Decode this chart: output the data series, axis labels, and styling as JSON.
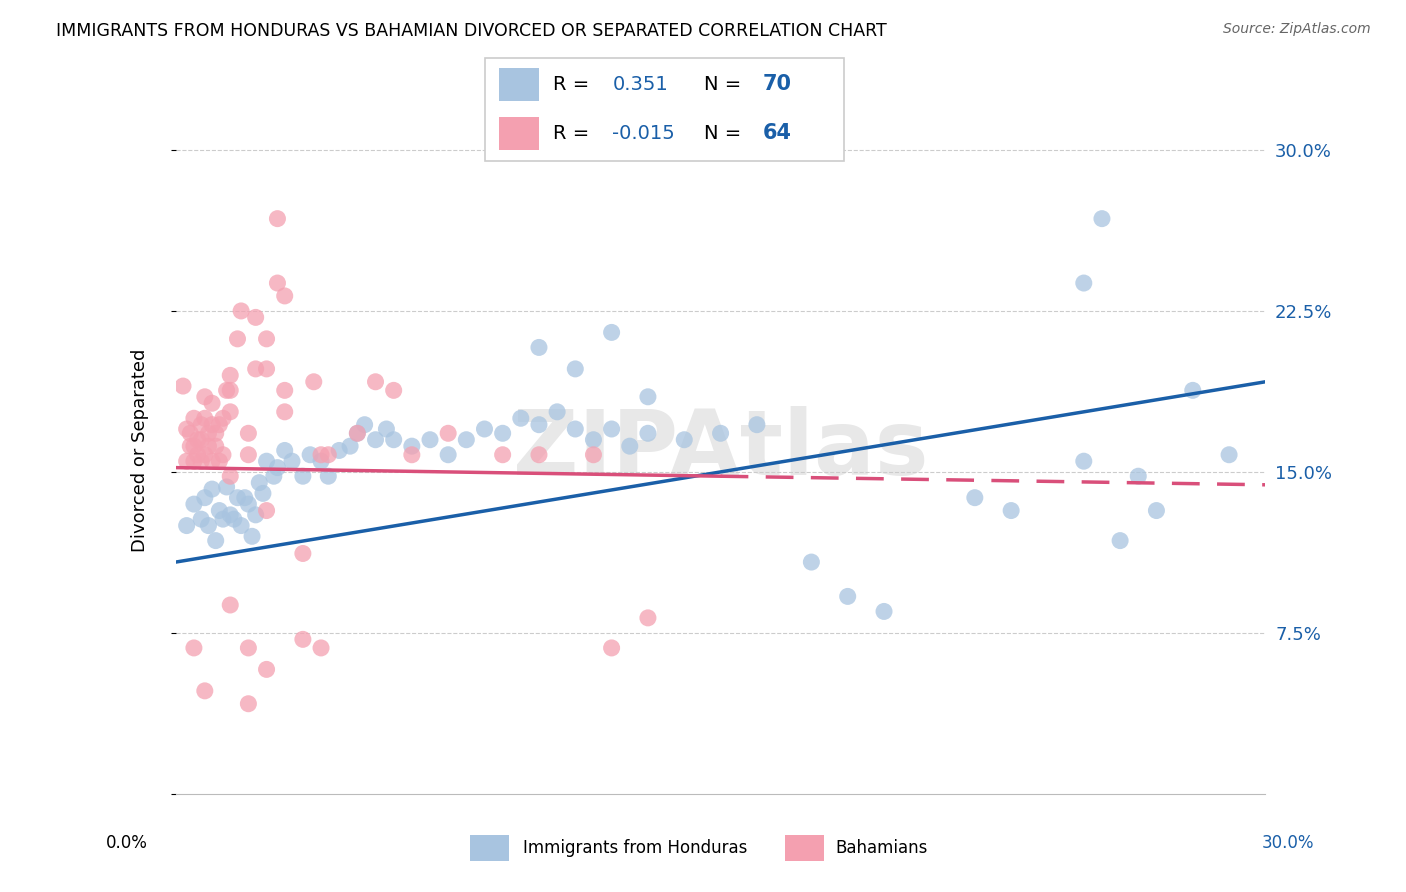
{
  "title": "IMMIGRANTS FROM HONDURAS VS BAHAMIAN DIVORCED OR SEPARATED CORRELATION CHART",
  "source": "Source: ZipAtlas.com",
  "ylabel": "Divorced or Separated",
  "ytick_vals": [
    0.0,
    0.075,
    0.15,
    0.225,
    0.3
  ],
  "ytick_labels": [
    "",
    "7.5%",
    "15.0%",
    "22.5%",
    "30.0%"
  ],
  "xlim": [
    0.0,
    0.3
  ],
  "ylim": [
    0.0,
    0.32
  ],
  "blue_scatter_color": "#a8c4e0",
  "pink_scatter_color": "#f4a0b0",
  "blue_line_color": "#1a5fa8",
  "pink_line_color": "#d94f7a",
  "watermark": "ZIPAtlas",
  "blue_points": [
    [
      0.003,
      0.125
    ],
    [
      0.005,
      0.135
    ],
    [
      0.007,
      0.128
    ],
    [
      0.008,
      0.138
    ],
    [
      0.009,
      0.125
    ],
    [
      0.01,
      0.142
    ],
    [
      0.011,
      0.118
    ],
    [
      0.012,
      0.132
    ],
    [
      0.013,
      0.128
    ],
    [
      0.014,
      0.143
    ],
    [
      0.015,
      0.13
    ],
    [
      0.016,
      0.128
    ],
    [
      0.017,
      0.138
    ],
    [
      0.018,
      0.125
    ],
    [
      0.019,
      0.138
    ],
    [
      0.02,
      0.135
    ],
    [
      0.021,
      0.12
    ],
    [
      0.022,
      0.13
    ],
    [
      0.023,
      0.145
    ],
    [
      0.024,
      0.14
    ],
    [
      0.025,
      0.155
    ],
    [
      0.027,
      0.148
    ],
    [
      0.028,
      0.152
    ],
    [
      0.03,
      0.16
    ],
    [
      0.032,
      0.155
    ],
    [
      0.035,
      0.148
    ],
    [
      0.037,
      0.158
    ],
    [
      0.04,
      0.155
    ],
    [
      0.042,
      0.148
    ],
    [
      0.045,
      0.16
    ],
    [
      0.048,
      0.162
    ],
    [
      0.05,
      0.168
    ],
    [
      0.052,
      0.172
    ],
    [
      0.055,
      0.165
    ],
    [
      0.058,
      0.17
    ],
    [
      0.06,
      0.165
    ],
    [
      0.065,
      0.162
    ],
    [
      0.07,
      0.165
    ],
    [
      0.075,
      0.158
    ],
    [
      0.08,
      0.165
    ],
    [
      0.085,
      0.17
    ],
    [
      0.09,
      0.168
    ],
    [
      0.095,
      0.175
    ],
    [
      0.1,
      0.172
    ],
    [
      0.105,
      0.178
    ],
    [
      0.11,
      0.17
    ],
    [
      0.115,
      0.165
    ],
    [
      0.12,
      0.17
    ],
    [
      0.125,
      0.162
    ],
    [
      0.13,
      0.168
    ],
    [
      0.1,
      0.208
    ],
    [
      0.11,
      0.198
    ],
    [
      0.12,
      0.215
    ],
    [
      0.13,
      0.185
    ],
    [
      0.14,
      0.165
    ],
    [
      0.15,
      0.168
    ],
    [
      0.16,
      0.172
    ],
    [
      0.175,
      0.108
    ],
    [
      0.185,
      0.092
    ],
    [
      0.195,
      0.085
    ],
    [
      0.22,
      0.138
    ],
    [
      0.23,
      0.132
    ],
    [
      0.25,
      0.238
    ],
    [
      0.255,
      0.268
    ],
    [
      0.26,
      0.118
    ],
    [
      0.27,
      0.132
    ],
    [
      0.28,
      0.188
    ],
    [
      0.29,
      0.158
    ],
    [
      0.25,
      0.155
    ],
    [
      0.265,
      0.148
    ]
  ],
  "pink_points": [
    [
      0.002,
      0.19
    ],
    [
      0.003,
      0.155
    ],
    [
      0.003,
      0.17
    ],
    [
      0.004,
      0.162
    ],
    [
      0.004,
      0.168
    ],
    [
      0.005,
      0.155
    ],
    [
      0.005,
      0.162
    ],
    [
      0.005,
      0.175
    ],
    [
      0.006,
      0.158
    ],
    [
      0.006,
      0.165
    ],
    [
      0.007,
      0.155
    ],
    [
      0.007,
      0.165
    ],
    [
      0.007,
      0.172
    ],
    [
      0.008,
      0.158
    ],
    [
      0.008,
      0.175
    ],
    [
      0.008,
      0.185
    ],
    [
      0.009,
      0.162
    ],
    [
      0.009,
      0.168
    ],
    [
      0.01,
      0.155
    ],
    [
      0.01,
      0.172
    ],
    [
      0.01,
      0.182
    ],
    [
      0.011,
      0.162
    ],
    [
      0.011,
      0.168
    ],
    [
      0.012,
      0.155
    ],
    [
      0.012,
      0.172
    ],
    [
      0.013,
      0.158
    ],
    [
      0.013,
      0.175
    ],
    [
      0.014,
      0.188
    ],
    [
      0.015,
      0.148
    ],
    [
      0.015,
      0.178
    ],
    [
      0.015,
      0.188
    ],
    [
      0.015,
      0.195
    ],
    [
      0.017,
      0.212
    ],
    [
      0.018,
      0.225
    ],
    [
      0.02,
      0.158
    ],
    [
      0.02,
      0.168
    ],
    [
      0.022,
      0.198
    ],
    [
      0.022,
      0.222
    ],
    [
      0.025,
      0.198
    ],
    [
      0.025,
      0.212
    ],
    [
      0.028,
      0.238
    ],
    [
      0.028,
      0.268
    ],
    [
      0.03,
      0.178
    ],
    [
      0.03,
      0.188
    ],
    [
      0.03,
      0.232
    ],
    [
      0.038,
      0.192
    ],
    [
      0.04,
      0.158
    ],
    [
      0.042,
      0.158
    ],
    [
      0.05,
      0.168
    ],
    [
      0.055,
      0.192
    ],
    [
      0.06,
      0.188
    ],
    [
      0.065,
      0.158
    ],
    [
      0.075,
      0.168
    ],
    [
      0.09,
      0.158
    ],
    [
      0.1,
      0.158
    ],
    [
      0.115,
      0.158
    ],
    [
      0.015,
      0.088
    ],
    [
      0.02,
      0.068
    ],
    [
      0.025,
      0.132
    ],
    [
      0.035,
      0.112
    ],
    [
      0.04,
      0.068
    ],
    [
      0.12,
      0.068
    ],
    [
      0.13,
      0.082
    ],
    [
      0.02,
      0.042
    ],
    [
      0.005,
      0.068
    ],
    [
      0.008,
      0.048
    ],
    [
      0.025,
      0.058
    ],
    [
      0.035,
      0.072
    ]
  ],
  "blue_line": [
    0.0,
    0.3,
    0.108,
    0.192
  ],
  "pink_line": [
    0.0,
    0.15,
    0.152,
    0.148
  ]
}
